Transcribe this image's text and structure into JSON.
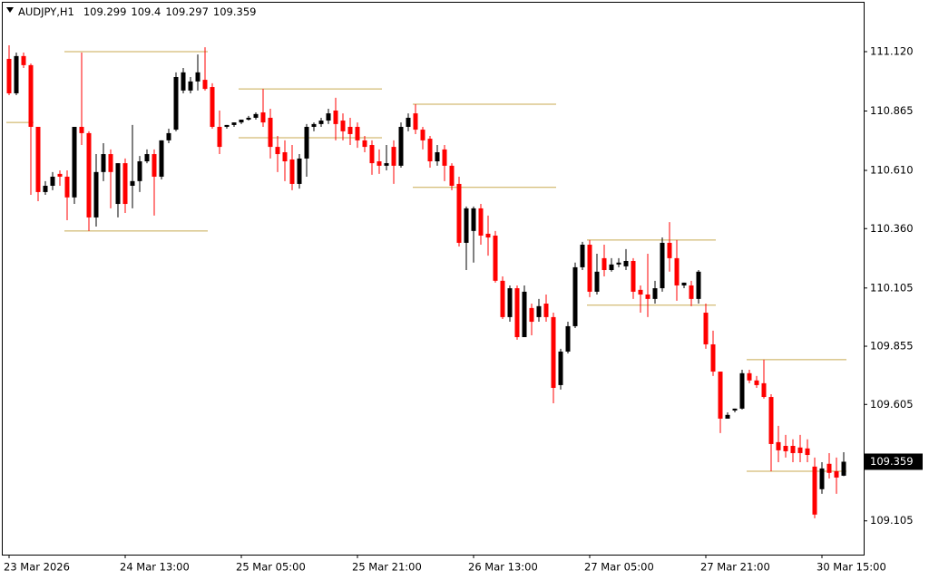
{
  "chart_data": {
    "type": "candlestick",
    "symbol": "AUDJPY,H1",
    "bull_color": "#000000",
    "bear_color": "#ff0000",
    "level_color": "#c8aa50",
    "grid": false,
    "ylim": [
      108.96,
      111.334
    ],
    "yticks": [
      {
        "value": 111.12,
        "label": "111.120"
      },
      110.865,
      {
        "value": 110.61,
        "label": "110.610"
      },
      {
        "value": 110.36,
        "label": "110.360"
      },
      110.105,
      109.855,
      109.605,
      109.105
    ],
    "categories": [
      "23 Mar 2026",
      null,
      null,
      null,
      null,
      null,
      null,
      null,
      null,
      null,
      null,
      null,
      null,
      null,
      null,
      null,
      "24 Mar 13:00",
      null,
      null,
      null,
      null,
      null,
      null,
      null,
      null,
      null,
      null,
      null,
      null,
      null,
      null,
      null,
      "25 Mar 05:00",
      null,
      null,
      null,
      null,
      null,
      null,
      null,
      null,
      null,
      null,
      null,
      null,
      null,
      null,
      null,
      "25 Mar 21:00",
      null,
      null,
      null,
      null,
      null,
      null,
      null,
      null,
      null,
      null,
      null,
      null,
      null,
      null,
      null,
      "26 Mar 13:00",
      null,
      null,
      null,
      null,
      null,
      null,
      null,
      null,
      null,
      null,
      null,
      null,
      null,
      null,
      null,
      "27 Mar 05:00",
      null,
      null,
      null,
      null,
      null,
      null,
      null,
      null,
      null,
      null,
      null,
      null,
      null,
      null,
      null,
      "27 Mar 21:00",
      null,
      null,
      null,
      null,
      null,
      null,
      null,
      null,
      null,
      null,
      null,
      null,
      null,
      null,
      null,
      "30 Mar 15:00",
      null,
      null,
      null
    ],
    "open": [
      111.089,
      110.941,
      111.101,
      111.062,
      110.797,
      110.517,
      110.544,
      110.595,
      110.583,
      110.494,
      110.797,
      110.77,
      110.408,
      110.603,
      110.68,
      110.466,
      110.641,
      110.544,
      110.564,
      110.649,
      110.68,
      110.583,
      110.739,
      110.785,
      110.953,
      110.953,
      110.992,
      110.999,
      110.968,
      110.797,
      110.797,
      110.805,
      110.816,
      110.828,
      110.836,
      110.859,
      110.836,
      110.711,
      110.688,
      110.657,
      110.552,
      110.661,
      110.797,
      110.809,
      110.824,
      110.867,
      110.824,
      110.797,
      110.797,
      110.739,
      110.719,
      110.649,
      110.63,
      110.711,
      110.63,
      110.797,
      110.855,
      110.785,
      110.746,
      110.649,
      110.7,
      110.63,
      110.552,
      110.299,
      110.35,
      110.447,
      110.338,
      110.33,
      110.136,
      109.98,
      110.104,
      109.894,
      110.019,
      109.98,
      110.038,
      109.98,
      109.688,
      109.832,
      109.941,
      110.194,
      110.291,
      110.089,
      110.233,
      110.182,
      110.206,
      110.198,
      110.221,
      110.097,
      110.077,
      110.058,
      110.104,
      110.299,
      110.233,
      110.116,
      110.116,
      110.058,
      109.999,
      109.863,
      109.746,
      109.544,
      109.579,
      109.587,
      109.739,
      109.708,
      109.696,
      109.637,
      109.443,
      109.427,
      109.427,
      109.42,
      109.416,
      109.338,
      109.241,
      109.35,
      109.318,
      109.299
    ],
    "high": [
      111.147,
      111.116,
      111.116,
      111.069,
      110.797,
      110.564,
      110.603,
      110.61,
      110.61,
      110.797,
      111.116,
      110.778,
      110.68,
      110.727,
      110.7,
      110.641,
      110.661,
      110.805,
      110.672,
      110.7,
      110.7,
      110.739,
      110.789,
      111.031,
      111.05,
      111.011,
      111.108,
      111.139,
      110.984,
      110.867,
      110.805,
      110.816,
      110.828,
      110.844,
      110.859,
      110.96,
      110.875,
      110.758,
      110.739,
      110.719,
      110.68,
      110.809,
      110.816,
      110.836,
      110.875,
      110.922,
      110.855,
      110.836,
      110.816,
      110.758,
      110.739,
      110.7,
      110.719,
      110.739,
      110.816,
      110.855,
      110.894,
      110.797,
      110.758,
      110.719,
      110.719,
      110.641,
      110.583,
      110.455,
      110.455,
      110.466,
      110.416,
      110.35,
      110.155,
      110.116,
      110.116,
      110.116,
      110.038,
      110.058,
      110.077,
      109.999,
      109.844,
      109.96,
      110.214,
      110.303,
      110.311,
      110.252,
      110.291,
      110.233,
      110.233,
      110.272,
      110.233,
      110.116,
      110.252,
      110.136,
      110.322,
      110.388,
      110.311,
      110.128,
      110.136,
      110.182,
      110.038,
      109.922,
      109.746,
      109.571,
      109.587,
      109.754,
      109.754,
      109.727,
      109.797,
      109.649,
      109.513,
      109.474,
      109.455,
      109.474,
      109.455,
      109.377,
      109.357,
      109.396,
      109.377,
      109.4
    ],
    "low": [
      110.933,
      110.933,
      111.05,
      110.505,
      110.478,
      110.505,
      110.525,
      110.544,
      110.396,
      110.466,
      110.719,
      110.35,
      110.369,
      110.564,
      110.447,
      110.408,
      110.427,
      110.447,
      110.517,
      110.641,
      110.416,
      110.571,
      110.727,
      110.778,
      110.941,
      110.941,
      110.953,
      110.953,
      110.789,
      110.68,
      110.789,
      110.797,
      110.809,
      110.824,
      110.828,
      110.797,
      110.661,
      110.603,
      110.564,
      110.525,
      110.532,
      110.583,
      110.778,
      110.797,
      110.809,
      110.739,
      110.739,
      110.719,
      110.707,
      110.688,
      110.591,
      110.595,
      110.61,
      110.552,
      110.622,
      110.778,
      110.766,
      110.7,
      110.622,
      110.63,
      110.564,
      110.525,
      110.283,
      110.182,
      110.214,
      110.291,
      110.244,
      110.128,
      109.972,
      109.96,
      109.883,
      109.894,
      109.902,
      109.96,
      109.96,
      109.61,
      109.669,
      109.824,
      109.933,
      110.182,
      110.066,
      110.077,
      110.155,
      110.175,
      110.194,
      110.182,
      110.058,
      109.999,
      109.98,
      110.038,
      110.089,
      110.175,
      110.05,
      110.104,
      110.027,
      110.038,
      109.844,
      109.727,
      109.482,
      109.544,
      109.571,
      109.583,
      109.696,
      109.676,
      109.63,
      109.318,
      109.357,
      109.377,
      109.357,
      109.357,
      109.357,
      109.116,
      109.221,
      109.287,
      109.221,
      109.297
    ],
    "close": [
      110.941,
      111.101,
      111.062,
      110.797,
      110.517,
      110.544,
      110.583,
      110.583,
      110.494,
      110.797,
      110.77,
      110.408,
      110.603,
      110.68,
      110.603,
      110.641,
      110.466,
      110.564,
      110.649,
      110.68,
      110.583,
      110.739,
      110.77,
      111.011,
      111.031,
      110.992,
      111.031,
      110.96,
      110.797,
      110.711,
      110.805,
      110.816,
      110.828,
      110.836,
      110.852,
      110.816,
      110.711,
      110.68,
      110.649,
      110.552,
      110.661,
      110.797,
      110.809,
      110.824,
      110.855,
      110.809,
      110.778,
      110.766,
      110.739,
      110.711,
      110.641,
      110.63,
      110.641,
      110.63,
      110.797,
      110.836,
      110.785,
      110.739,
      110.649,
      110.688,
      110.63,
      110.544,
      110.299,
      110.447,
      110.447,
      110.33,
      110.322,
      110.136,
      109.98,
      110.104,
      109.894,
      110.089,
      109.96,
      110.027,
      109.98,
      109.676,
      109.832,
      109.941,
      110.194,
      110.291,
      110.089,
      110.175,
      110.182,
      110.206,
      110.214,
      110.221,
      110.089,
      110.077,
      110.058,
      110.104,
      110.299,
      110.233,
      110.116,
      110.128,
      110.058,
      110.175,
      109.863,
      109.746,
      109.544,
      109.56,
      109.587,
      109.739,
      109.708,
      109.688,
      109.637,
      109.435,
      109.408,
      109.404,
      109.396,
      109.396,
      109.388,
      109.132,
      109.33,
      109.311,
      109.291,
      109.359
    ],
    "levels": [
      {
        "value": 111.12,
        "from": 8,
        "to": 27
      },
      {
        "value": 110.816,
        "from": 0,
        "to": 3
      },
      {
        "value": 110.35,
        "from": 8,
        "to": 27
      },
      {
        "value": 110.96,
        "from": 32,
        "to": 51
      },
      {
        "value": 110.75,
        "from": 32,
        "to": 51
      },
      {
        "value": 110.894,
        "from": 56,
        "to": 75
      },
      {
        "value": 110.537,
        "from": 56,
        "to": 75
      },
      {
        "value": 110.311,
        "from": 80,
        "to": 97
      },
      {
        "value": 110.031,
        "from": 80,
        "to": 97
      },
      {
        "value": 109.797,
        "from": 102,
        "to": 115
      },
      {
        "value": 109.318,
        "from": 102,
        "to": 115
      }
    ]
  }
}
